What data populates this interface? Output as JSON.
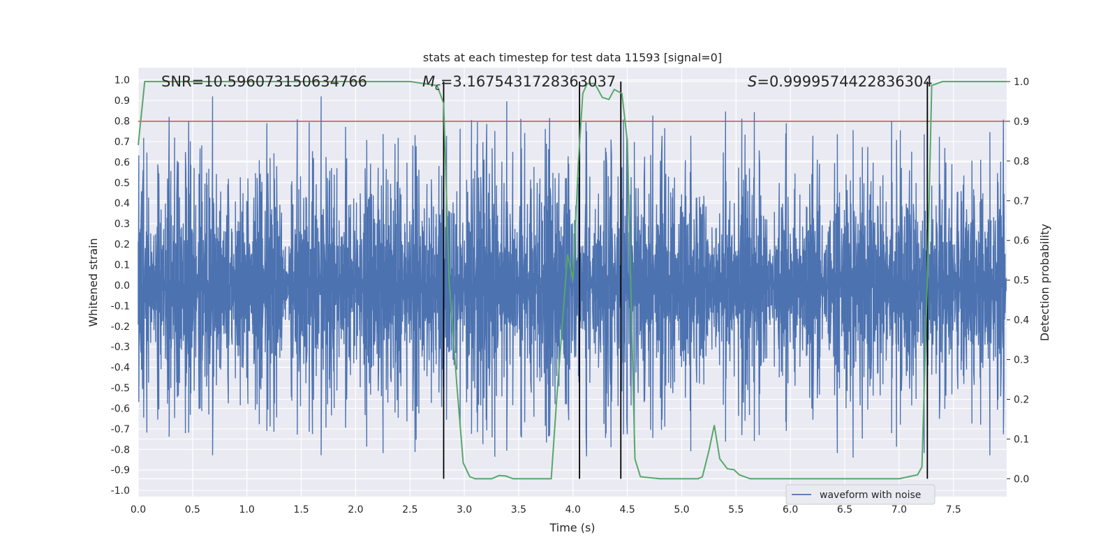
{
  "chart_data": {
    "type": "line",
    "title": "stats at each timestep for test data 11593 [signal=0]",
    "xlabel": "Time (s)",
    "ylabel": "Whitened strain",
    "y2label": "Detection probability",
    "xlim": [
      0,
      7.99
    ],
    "ylim": [
      -1.03,
      1.06
    ],
    "y2lim": [
      -0.045,
      1.035
    ],
    "xticks": [
      "0.0",
      "0.5",
      "1.0",
      "1.5",
      "2.0",
      "2.5",
      "3.0",
      "3.5",
      "4.0",
      "4.5",
      "5.0",
      "5.5",
      "6.0",
      "6.5",
      "7.0",
      "7.5"
    ],
    "yticks": [
      "1.0",
      "0.9",
      "0.8",
      "0.7",
      "0.6",
      "0.5",
      "0.4",
      "0.3",
      "0.2",
      "0.1",
      "0.0",
      "-0.1",
      "-0.2",
      "-0.3",
      "-0.4",
      "-0.5",
      "-0.6",
      "-0.7",
      "-0.8",
      "-0.9",
      "-1.0"
    ],
    "y2ticks": [
      "1.0",
      "0.9",
      "0.8",
      "0.7",
      "0.6",
      "0.5",
      "0.4",
      "0.3",
      "0.2",
      "0.1",
      "0.0"
    ],
    "annotations": {
      "snr": "SNR=10.596073150634766",
      "mc_symbol": "M",
      "mc_sub": "c",
      "mc_value": "=3.1675431728363037",
      "s_symbol": "S",
      "s_value": "=0.9999574422836304"
    },
    "legend": {
      "label": "waveform with noise",
      "position": "lower-right"
    },
    "threshold": {
      "y2": 0.9,
      "color": "#c44e52"
    },
    "vlines": [
      2.81,
      4.06,
      4.44,
      7.26
    ],
    "waveform": {
      "name": "waveform with noise",
      "color": "#4c72b0",
      "duration": 7.99,
      "samples": 1600,
      "seed": 11593
    },
    "probability": {
      "name": "detection probability",
      "color": "#55a868",
      "x": [
        0.0,
        0.06,
        0.15,
        0.3,
        1.0,
        2.0,
        2.5,
        2.75,
        2.81,
        2.86,
        2.93,
        2.99,
        3.05,
        3.1,
        3.25,
        3.32,
        3.38,
        3.45,
        3.6,
        3.8,
        3.85,
        3.95,
        4.0,
        4.05,
        4.09,
        4.13,
        4.2,
        4.27,
        4.33,
        4.38,
        4.45,
        4.5,
        4.57,
        4.62,
        4.8,
        5.0,
        5.15,
        5.19,
        5.25,
        5.3,
        5.35,
        5.42,
        5.48,
        5.53,
        5.63,
        6.0,
        6.5,
        7.0,
        7.17,
        7.21,
        7.26,
        7.3,
        7.4,
        7.99
      ],
      "y": [
        0.84,
        1.0,
        1.0,
        1.0,
        1.0,
        1.0,
        1.0,
        0.99,
        0.945,
        0.5,
        0.24,
        0.04,
        0.005,
        0.0,
        0.0,
        0.008,
        0.007,
        0.0,
        0.0,
        0.0,
        0.2,
        0.565,
        0.5,
        0.8,
        0.97,
        0.995,
        0.995,
        0.96,
        0.955,
        0.98,
        0.97,
        0.85,
        0.05,
        0.005,
        0.0,
        0.0,
        0.0,
        0.005,
        0.07,
        0.135,
        0.05,
        0.025,
        0.023,
        0.01,
        0.0,
        0.0,
        0.0,
        0.0,
        0.01,
        0.03,
        0.5,
        0.99,
        1.0,
        1.0
      ]
    },
    "colors": {
      "background": "#eaeaf2",
      "grid": "#ffffff",
      "vline": "#000000"
    }
  }
}
